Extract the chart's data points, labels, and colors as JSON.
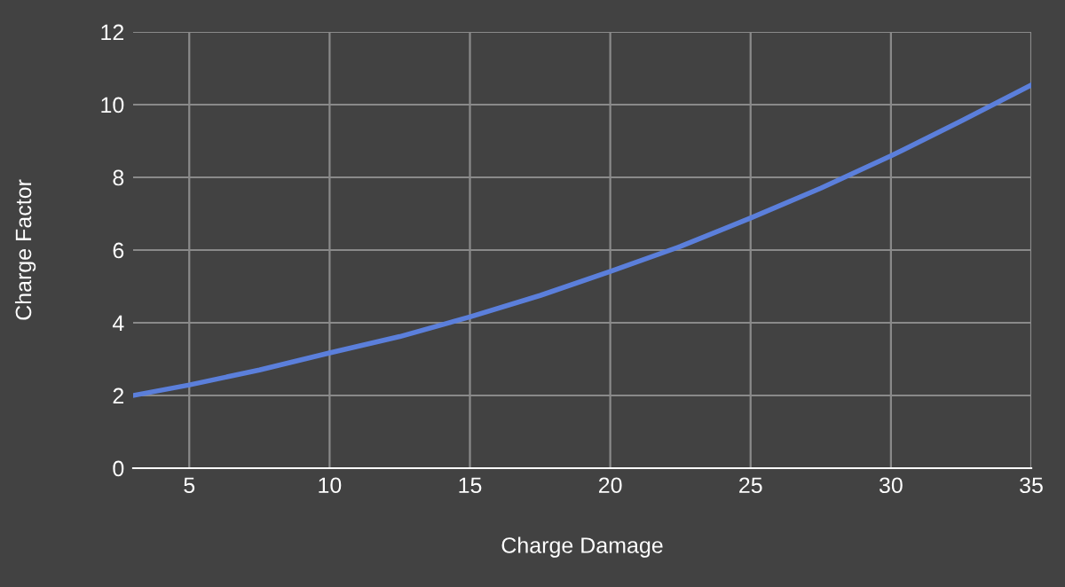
{
  "chart_data": {
    "type": "line",
    "xlabel": "Charge Damage",
    "ylabel": "Charge Factor",
    "x": [
      3,
      5,
      7.5,
      10,
      12.5,
      15,
      17.5,
      20,
      22.5,
      25,
      27.5,
      30,
      32.5,
      35
    ],
    "series": [
      {
        "color": "#5b7fdb",
        "values": [
          2.0,
          2.29,
          2.7,
          3.17,
          3.62,
          4.16,
          4.75,
          5.41,
          6.1,
          6.88,
          7.7,
          8.59,
          9.55,
          10.54
        ]
      }
    ],
    "xlim": [
      3,
      35
    ],
    "xticks": [
      5,
      10,
      15,
      20,
      25,
      30,
      35
    ],
    "ylim": [
      0,
      12
    ],
    "yticks": [
      0,
      2,
      4,
      6,
      8,
      10,
      12
    ],
    "grid": true,
    "legend": false,
    "marker": "none",
    "line_style": "solid"
  }
}
